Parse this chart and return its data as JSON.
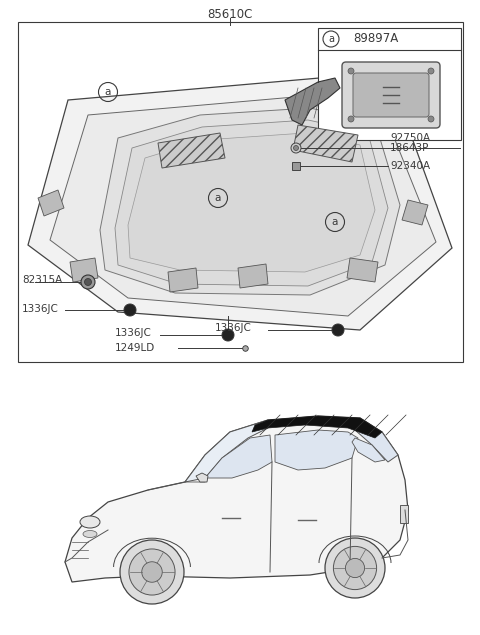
{
  "title": "85610C",
  "bg_color": "#ffffff",
  "lc": "#3a3a3a",
  "fig_width": 4.8,
  "fig_height": 6.35,
  "dpi": 100,
  "labels": {
    "main_title": "85610C",
    "inset_part": "89897A",
    "p92750A": "92750A",
    "p92340A": "92340A",
    "p18643P": "18643P",
    "p82315A": "82315A",
    "p1336JC": "1336JC",
    "p1249LD": "1249LD",
    "circle_a": "a"
  }
}
